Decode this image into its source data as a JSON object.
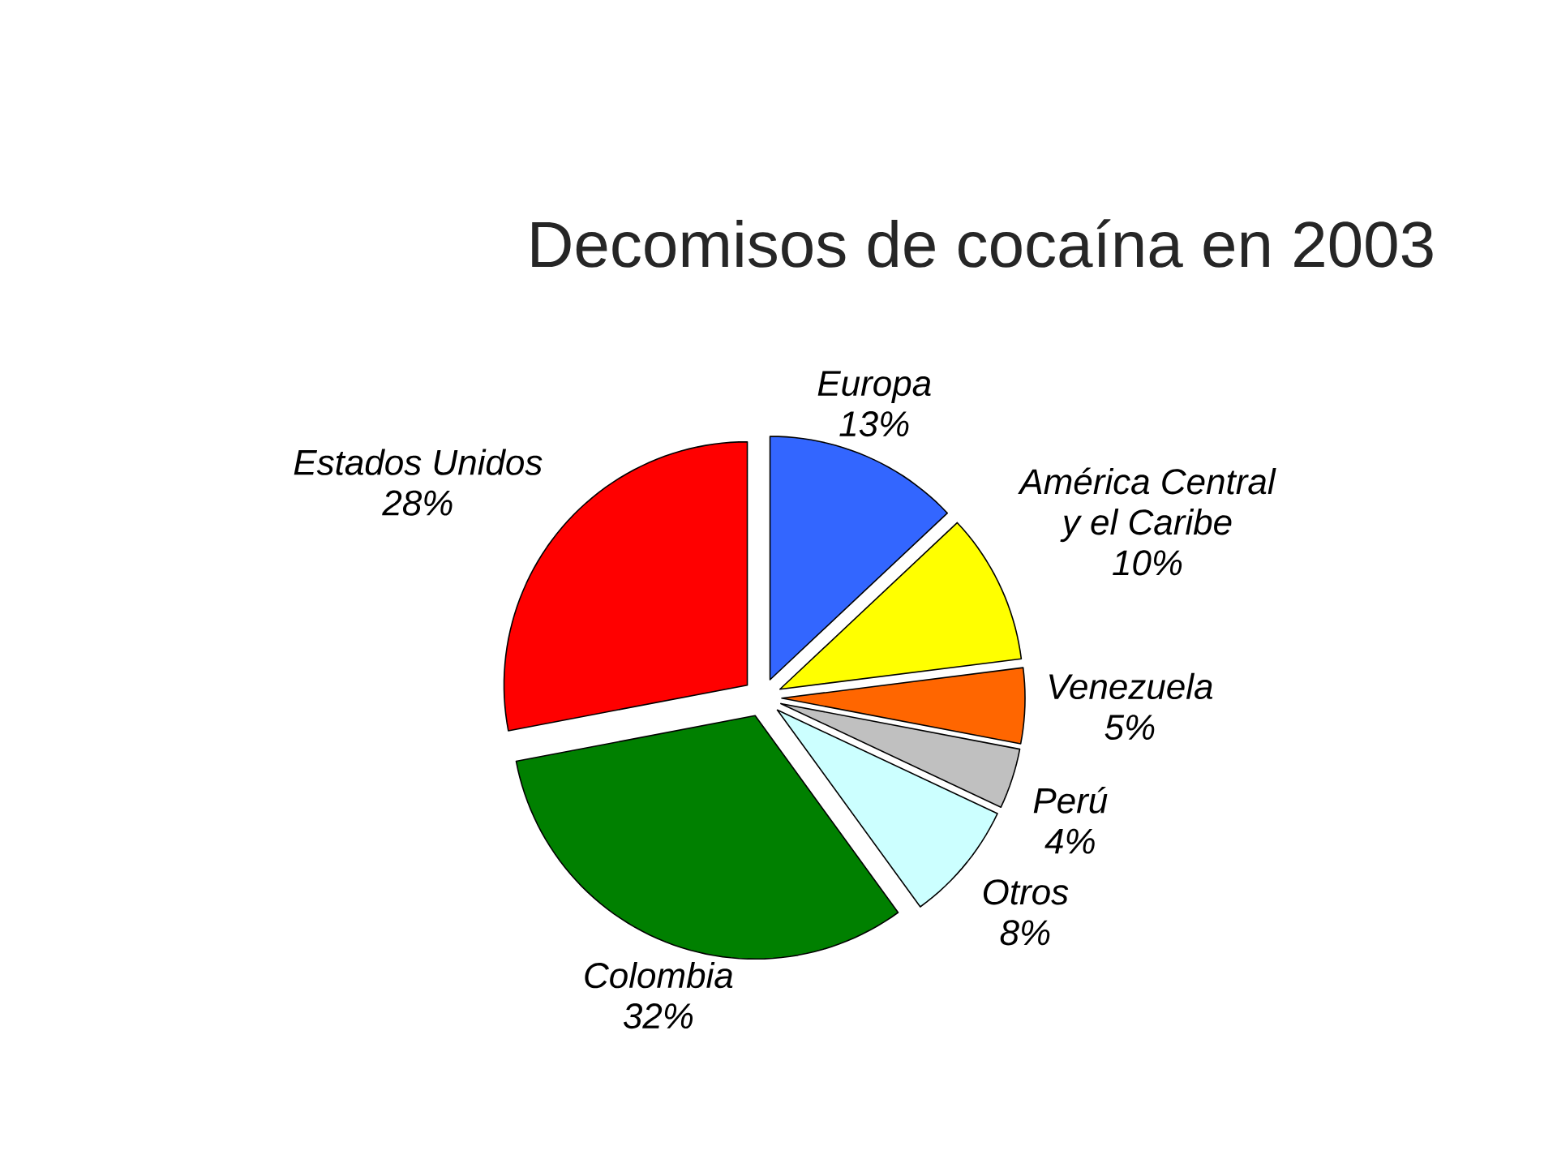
{
  "chart_data": {
    "type": "pie",
    "title": "Decomisos de cocaína en 2003",
    "categories": [
      "Europa",
      "América Central y el Caribe",
      "Venezuela",
      "Perú",
      "Otros",
      "Colombia",
      "Estados Unidos"
    ],
    "values": [
      13,
      10,
      5,
      4,
      8,
      32,
      28
    ],
    "value_labels": [
      "13%",
      "10%",
      "5%",
      "4%",
      "8%",
      "32%",
      "28%"
    ],
    "colors": [
      "#3366ff",
      "#ffff00",
      "#ff6600",
      "#c0c0c0",
      "#ccffff",
      "#008000",
      "#ff0000"
    ]
  }
}
